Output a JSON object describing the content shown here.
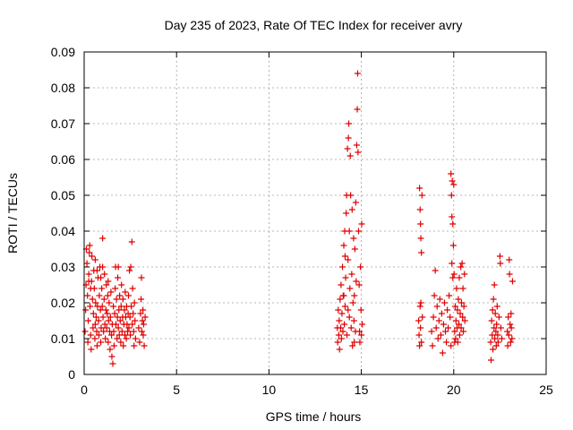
{
  "chart_data": {
    "type": "scatter",
    "title": "Day 235 of 2023, Rate Of TEC Index for receiver avry",
    "xlabel": "GPS time / hours",
    "ylabel": "ROTI / TECUs",
    "xlim": [
      0,
      25
    ],
    "ylim": [
      0,
      0.09
    ],
    "xticks": [
      0,
      5,
      10,
      15,
      20,
      25
    ],
    "xtick_labels": [
      "0",
      "5",
      "10",
      "15",
      "20",
      "25"
    ],
    "yticks": [
      0,
      0.01,
      0.02,
      0.03,
      0.04,
      0.05,
      0.06,
      0.07,
      0.08,
      0.09
    ],
    "ytick_labels": [
      "0",
      "0.01",
      "0.02",
      "0.03",
      "0.04",
      "0.05",
      "0.06",
      "0.07",
      "0.08",
      "0.09"
    ],
    "grid": true,
    "marker": "plus",
    "color": "#e00000",
    "series": [
      {
        "values": [
          [
            0.05,
            0.012
          ],
          [
            0.08,
            0.018
          ],
          [
            0.1,
            0.025
          ],
          [
            0.12,
            0.035
          ],
          [
            0.15,
            0.031
          ],
          [
            0.18,
            0.022
          ],
          [
            0.2,
            0.009
          ],
          [
            0.22,
            0.015
          ],
          [
            0.25,
            0.028
          ],
          [
            0.28,
            0.034
          ],
          [
            0.3,
            0.036
          ],
          [
            0.32,
            0.019
          ],
          [
            0.35,
            0.011
          ],
          [
            0.38,
            0.007
          ],
          [
            0.4,
            0.026
          ],
          [
            0.42,
            0.033
          ],
          [
            0.45,
            0.021
          ],
          [
            0.48,
            0.013
          ],
          [
            0.5,
            0.017
          ],
          [
            0.52,
            0.029
          ],
          [
            0.55,
            0.024
          ],
          [
            0.58,
            0.01
          ],
          [
            0.6,
            0.014
          ],
          [
            0.62,
            0.02
          ],
          [
            0.65,
            0.016
          ],
          [
            0.68,
            0.012
          ],
          [
            0.7,
            0.008
          ],
          [
            0.72,
            0.019
          ],
          [
            0.75,
            0.027
          ],
          [
            0.78,
            0.015
          ],
          [
            0.8,
            0.011
          ],
          [
            0.82,
            0.022
          ],
          [
            0.85,
            0.03
          ],
          [
            0.88,
            0.018
          ],
          [
            0.9,
            0.009
          ],
          [
            0.92,
            0.013
          ],
          [
            0.95,
            0.024
          ],
          [
            0.98,
            0.019
          ],
          [
            1.0,
            0.03
          ],
          [
            1.02,
            0.016
          ],
          [
            1.05,
            0.012
          ],
          [
            1.08,
            0.021
          ],
          [
            1.1,
            0.028
          ],
          [
            1.12,
            0.014
          ],
          [
            1.15,
            0.01
          ],
          [
            1.18,
            0.018
          ],
          [
            1.2,
            0.025
          ],
          [
            1.22,
            0.013
          ],
          [
            1.25,
            0.017
          ],
          [
            1.28,
            0.022
          ],
          [
            1.3,
            0.009
          ],
          [
            1.32,
            0.015
          ],
          [
            1.35,
            0.02
          ],
          [
            1.38,
            0.012
          ],
          [
            1.4,
            0.007
          ],
          [
            1.42,
            0.016
          ],
          [
            1.45,
            0.023
          ],
          [
            1.48,
            0.011
          ],
          [
            1.5,
            0.005
          ],
          [
            1.52,
            0.014
          ],
          [
            1.55,
            0.003
          ],
          [
            1.58,
            0.019
          ],
          [
            1.6,
            0.012
          ],
          [
            1.62,
            0.008
          ],
          [
            1.65,
            0.017
          ],
          [
            1.68,
            0.024
          ],
          [
            1.7,
            0.03
          ],
          [
            1.72,
            0.014
          ],
          [
            1.75,
            0.021
          ],
          [
            1.78,
            0.01
          ],
          [
            1.8,
            0.016
          ],
          [
            1.82,
            0.027
          ],
          [
            1.85,
            0.013
          ],
          [
            1.88,
            0.018
          ],
          [
            1.9,
            0.011
          ],
          [
            1.92,
            0.022
          ],
          [
            1.95,
            0.015
          ],
          [
            1.98,
            0.009
          ],
          [
            2.0,
            0.019
          ],
          [
            2.02,
            0.025
          ],
          [
            2.05,
            0.012
          ],
          [
            2.08,
            0.016
          ],
          [
            2.1,
            0.021
          ],
          [
            2.12,
            0.008
          ],
          [
            2.15,
            0.014
          ],
          [
            2.18,
            0.018
          ],
          [
            2.2,
            0.011
          ],
          [
            2.22,
            0.023
          ],
          [
            2.25,
            0.016
          ],
          [
            2.28,
            0.01
          ],
          [
            2.3,
            0.019
          ],
          [
            2.32,
            0.014
          ],
          [
            2.35,
            0.012
          ],
          [
            2.38,
            0.017
          ],
          [
            2.4,
            0.022
          ],
          [
            2.42,
            0.013
          ],
          [
            2.45,
            0.029
          ],
          [
            2.48,
            0.016
          ],
          [
            2.5,
            0.011
          ],
          [
            2.52,
            0.03
          ],
          [
            2.55,
            0.019
          ],
          [
            2.58,
            0.037
          ],
          [
            2.6,
            0.014
          ],
          [
            2.62,
            0.024
          ],
          [
            2.65,
            0.017
          ],
          [
            2.68,
            0.012
          ],
          [
            2.7,
            0.008
          ],
          [
            2.72,
            0.02
          ],
          [
            2.75,
            0.015
          ],
          [
            2.78,
            0.01
          ],
          [
            2.95,
            0.013
          ],
          [
            3.0,
            0.009
          ],
          [
            3.05,
            0.017
          ],
          [
            3.08,
            0.021
          ],
          [
            3.1,
            0.027
          ],
          [
            3.12,
            0.012
          ],
          [
            3.15,
            0.015
          ],
          [
            3.18,
            0.018
          ],
          [
            3.2,
            0.011
          ],
          [
            3.22,
            0.014
          ],
          [
            3.25,
            0.008
          ],
          [
            3.3,
            0.016
          ],
          [
            0.6,
            0.032
          ],
          [
            0.9,
            0.027
          ],
          [
            1.3,
            0.026
          ],
          [
            1.85,
            0.03
          ],
          [
            1.0,
            0.038
          ],
          [
            0.25,
            0.026
          ],
          [
            0.35,
            0.024
          ],
          [
            0.7,
            0.029
          ],
          [
            13.7,
            0.013
          ],
          [
            13.72,
            0.009
          ],
          [
            13.75,
            0.018
          ],
          [
            13.78,
            0.011
          ],
          [
            13.8,
            0.015
          ],
          [
            13.82,
            0.007
          ],
          [
            13.85,
            0.021
          ],
          [
            13.88,
            0.013
          ],
          [
            13.9,
            0.025
          ],
          [
            13.92,
            0.01
          ],
          [
            13.95,
            0.017
          ],
          [
            13.98,
            0.03
          ],
          [
            14.0,
            0.012
          ],
          [
            14.02,
            0.022
          ],
          [
            14.05,
            0.036
          ],
          [
            14.08,
            0.014
          ],
          [
            14.1,
            0.04
          ],
          [
            14.12,
            0.019
          ],
          [
            14.15,
            0.027
          ],
          [
            14.18,
            0.045
          ],
          [
            14.2,
            0.05
          ],
          [
            14.22,
            0.011
          ],
          [
            14.25,
            0.063
          ],
          [
            14.28,
            0.032
          ],
          [
            14.3,
            0.066
          ],
          [
            14.32,
            0.07
          ],
          [
            14.35,
            0.016
          ],
          [
            14.38,
            0.024
          ],
          [
            14.4,
            0.061
          ],
          [
            14.42,
            0.05
          ],
          [
            14.45,
            0.013
          ],
          [
            14.48,
            0.028
          ],
          [
            14.5,
            0.046
          ],
          [
            14.52,
            0.008
          ],
          [
            14.55,
            0.02
          ],
          [
            14.58,
            0.038
          ],
          [
            14.6,
            0.015
          ],
          [
            14.62,
            0.022
          ],
          [
            14.65,
            0.035
          ],
          [
            14.68,
            0.012
          ],
          [
            14.7,
            0.048
          ],
          [
            14.72,
            0.026
          ],
          [
            14.75,
            0.064
          ],
          [
            14.78,
            0.074
          ],
          [
            14.8,
            0.084
          ],
          [
            14.82,
            0.062
          ],
          [
            14.85,
            0.04
          ],
          [
            14.88,
            0.025
          ],
          [
            14.9,
            0.012
          ],
          [
            14.92,
            0.009
          ],
          [
            14.95,
            0.03
          ],
          [
            14.98,
            0.018
          ],
          [
            15.0,
            0.011
          ],
          [
            15.02,
            0.042
          ],
          [
            15.05,
            0.014
          ],
          [
            14.12,
            0.033
          ],
          [
            14.28,
            0.018
          ],
          [
            14.62,
            0.009
          ],
          [
            14.35,
            0.04
          ],
          [
            14.05,
            0.022
          ],
          [
            18.15,
            0.052
          ],
          [
            18.18,
            0.046
          ],
          [
            18.2,
            0.042
          ],
          [
            18.22,
            0.038
          ],
          [
            18.25,
            0.034
          ],
          [
            18.28,
            0.05
          ],
          [
            18.1,
            0.015
          ],
          [
            18.12,
            0.011
          ],
          [
            18.15,
            0.008
          ],
          [
            18.18,
            0.019
          ],
          [
            18.2,
            0.013
          ],
          [
            18.22,
            0.02
          ],
          [
            18.25,
            0.009
          ],
          [
            18.3,
            0.016
          ],
          [
            18.8,
            0.012
          ],
          [
            18.85,
            0.008
          ],
          [
            18.9,
            0.016
          ],
          [
            18.95,
            0.022
          ],
          [
            19.0,
            0.029
          ],
          [
            19.05,
            0.013
          ],
          [
            19.1,
            0.019
          ],
          [
            19.15,
            0.01
          ],
          [
            19.2,
            0.015
          ],
          [
            19.25,
            0.021
          ],
          [
            19.3,
            0.011
          ],
          [
            19.35,
            0.017
          ],
          [
            19.4,
            0.006
          ],
          [
            19.45,
            0.014
          ],
          [
            19.5,
            0.02
          ],
          [
            19.55,
            0.012
          ],
          [
            19.6,
            0.009
          ],
          [
            19.65,
            0.018
          ],
          [
            19.7,
            0.013
          ],
          [
            19.75,
            0.022
          ],
          [
            19.8,
            0.016
          ],
          [
            19.85,
            0.056
          ],
          [
            19.88,
            0.05
          ],
          [
            19.9,
            0.044
          ],
          [
            19.92,
            0.054
          ],
          [
            19.95,
            0.042
          ],
          [
            19.98,
            0.036
          ],
          [
            20.0,
            0.053
          ],
          [
            20.02,
            0.028
          ],
          [
            20.05,
            0.012
          ],
          [
            20.08,
            0.019
          ],
          [
            20.1,
            0.01
          ],
          [
            20.12,
            0.015
          ],
          [
            20.15,
            0.024
          ],
          [
            20.18,
            0.013
          ],
          [
            20.2,
            0.018
          ],
          [
            20.22,
            0.009
          ],
          [
            20.25,
            0.021
          ],
          [
            20.28,
            0.014
          ],
          [
            20.3,
            0.027
          ],
          [
            20.32,
            0.011
          ],
          [
            20.35,
            0.017
          ],
          [
            20.38,
            0.03
          ],
          [
            20.4,
            0.013
          ],
          [
            20.42,
            0.02
          ],
          [
            20.45,
            0.031
          ],
          [
            20.48,
            0.016
          ],
          [
            20.5,
            0.024
          ],
          [
            20.52,
            0.012
          ],
          [
            20.55,
            0.019
          ],
          [
            20.58,
            0.028
          ],
          [
            20.6,
            0.015
          ],
          [
            19.9,
            0.031
          ],
          [
            19.95,
            0.027
          ],
          [
            20.05,
            0.009
          ],
          [
            19.85,
            0.008
          ],
          [
            22.0,
            0.009
          ],
          [
            22.02,
            0.004
          ],
          [
            22.05,
            0.015
          ],
          [
            22.08,
            0.011
          ],
          [
            22.1,
            0.018
          ],
          [
            22.12,
            0.007
          ],
          [
            22.15,
            0.021
          ],
          [
            22.18,
            0.013
          ],
          [
            22.2,
            0.025
          ],
          [
            22.22,
            0.01
          ],
          [
            22.25,
            0.017
          ],
          [
            22.28,
            0.012
          ],
          [
            22.3,
            0.008
          ],
          [
            22.32,
            0.014
          ],
          [
            22.35,
            0.019
          ],
          [
            22.38,
            0.011
          ],
          [
            22.4,
            0.009
          ],
          [
            22.45,
            0.016
          ],
          [
            22.5,
            0.033
          ],
          [
            22.52,
            0.031
          ],
          [
            22.55,
            0.013
          ],
          [
            22.6,
            0.01
          ],
          [
            22.9,
            0.012
          ],
          [
            22.92,
            0.008
          ],
          [
            22.95,
            0.016
          ],
          [
            22.98,
            0.011
          ],
          [
            23.0,
            0.032
          ],
          [
            23.02,
            0.028
          ],
          [
            23.05,
            0.014
          ],
          [
            23.08,
            0.009
          ],
          [
            23.1,
            0.017
          ],
          [
            23.12,
            0.013
          ],
          [
            23.15,
            0.01
          ],
          [
            23.18,
            0.026
          ]
        ]
      }
    ]
  }
}
